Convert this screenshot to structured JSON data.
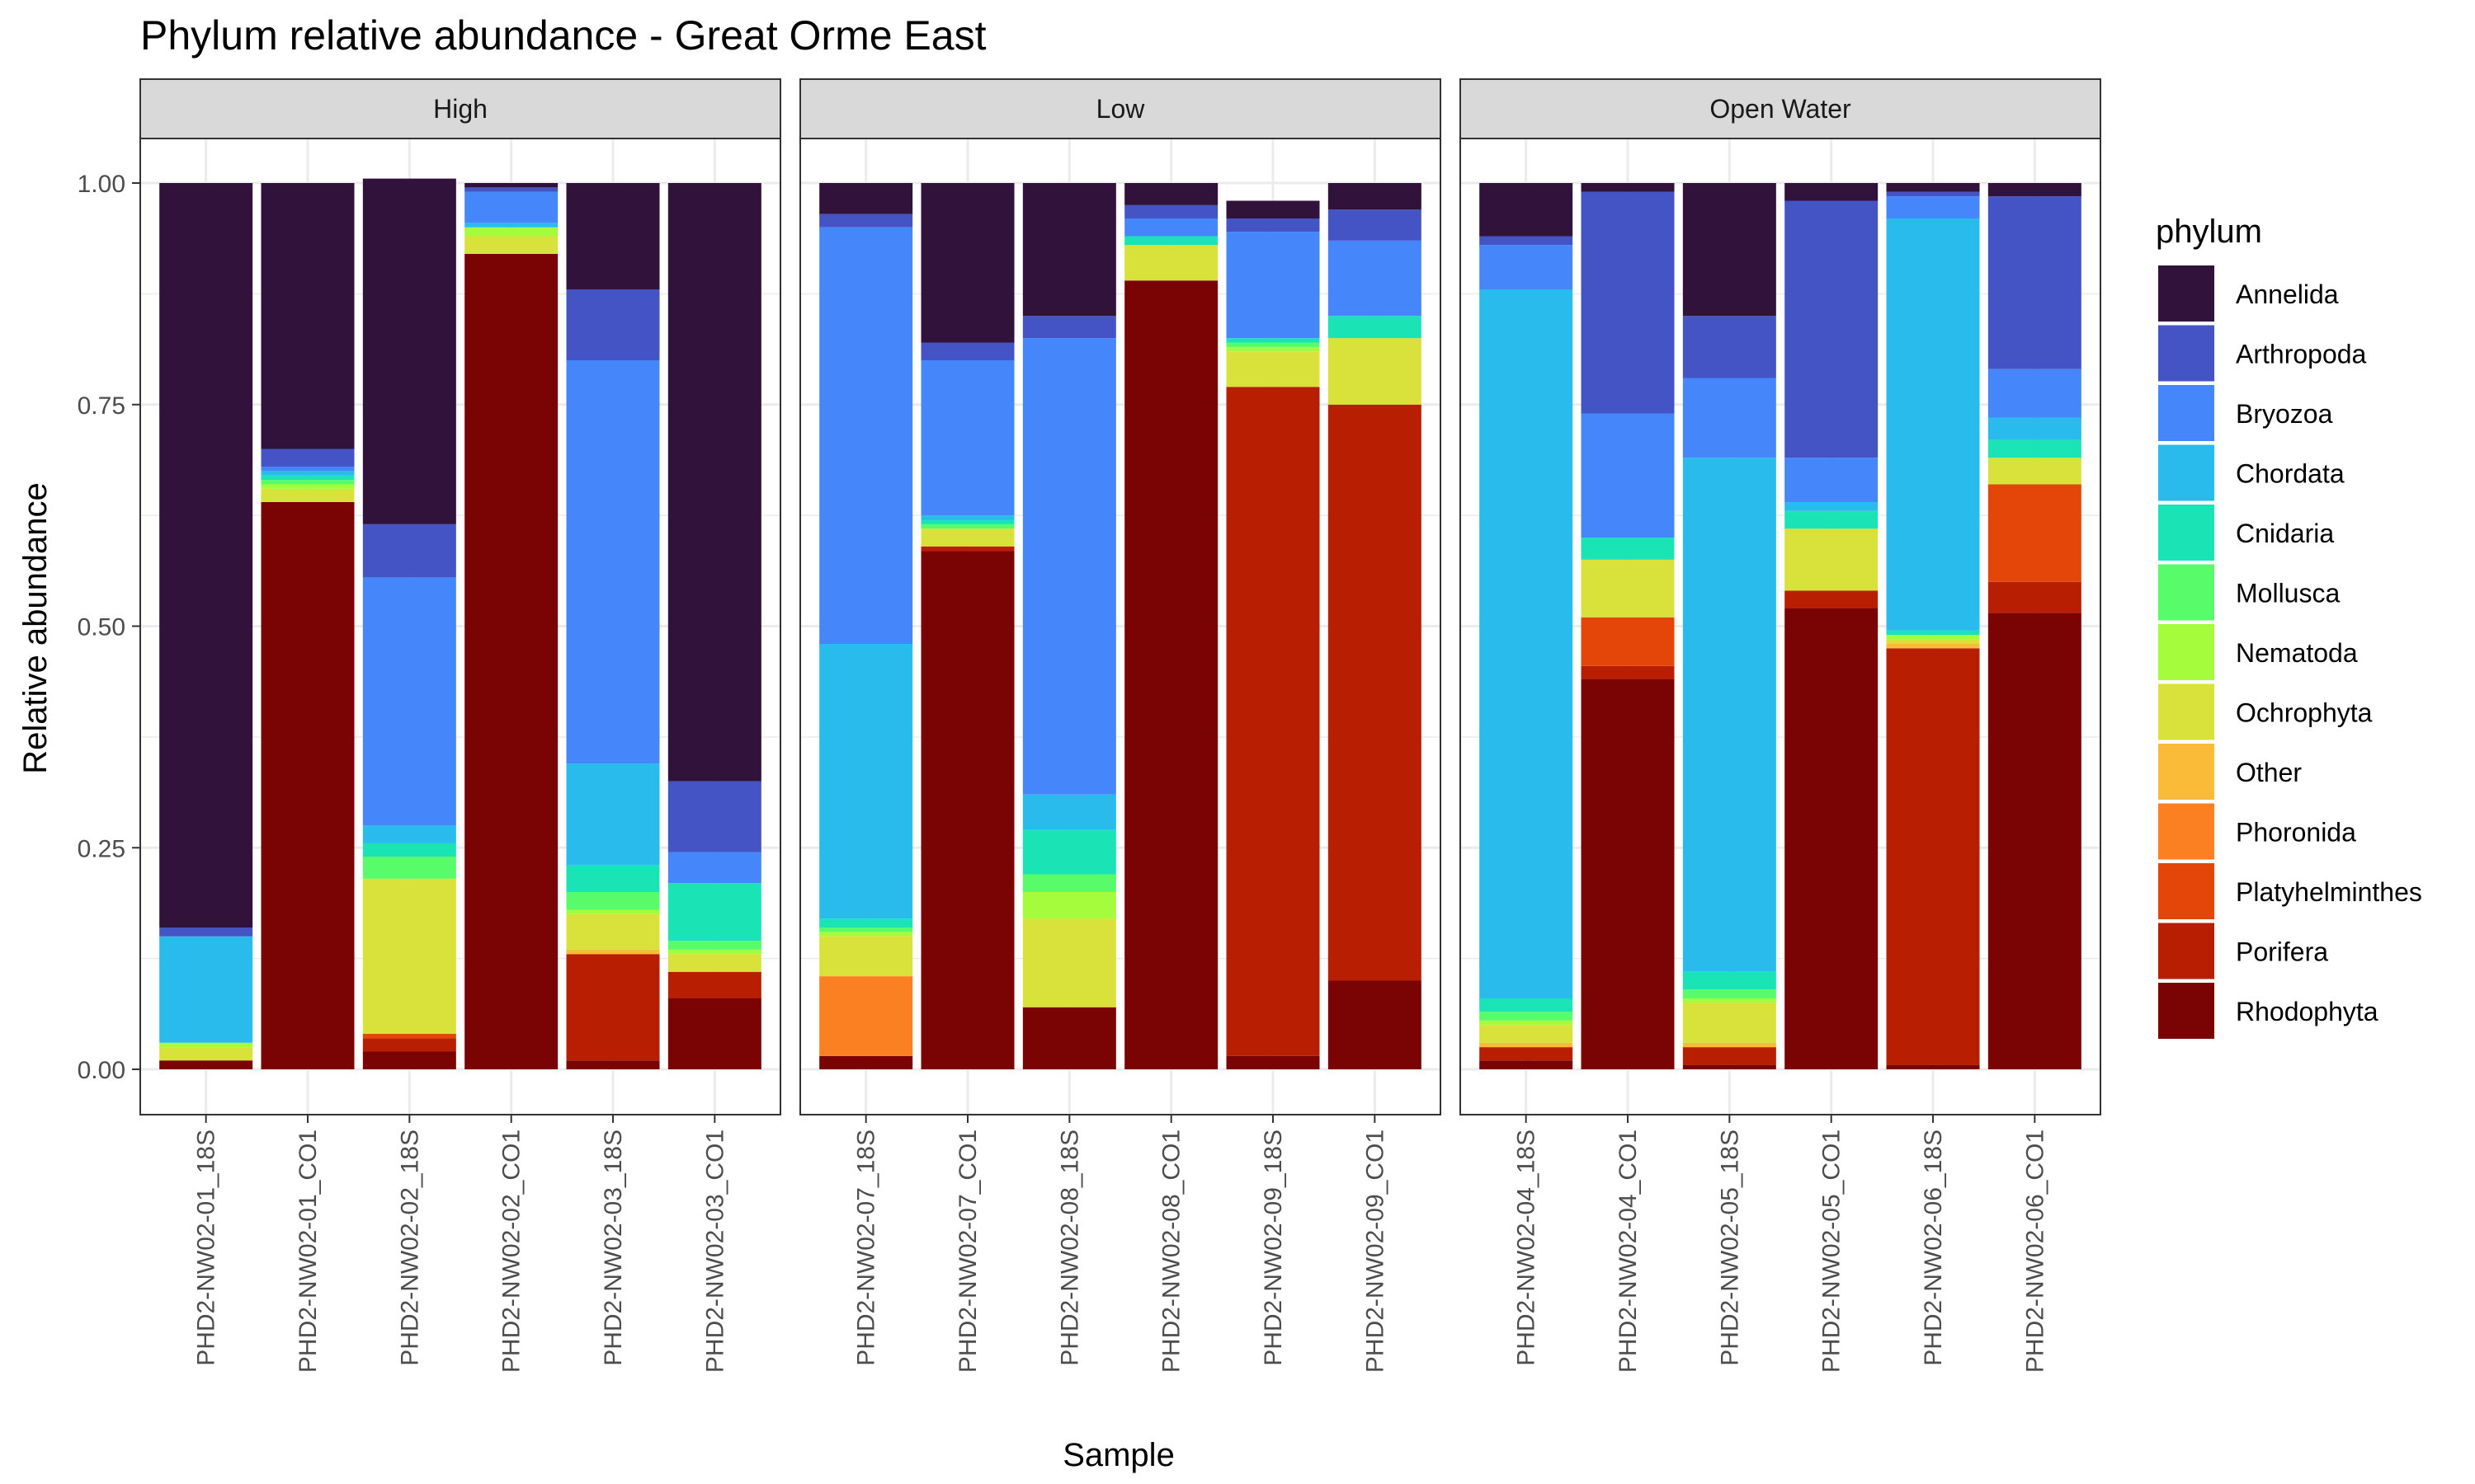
{
  "chart_data": {
    "type": "bar",
    "stacked": true,
    "title": "Phylum relative abundance - Great Orme East",
    "xlabel": "Sample",
    "ylabel": "Relative abundance",
    "ylim": [
      0,
      1
    ],
    "yticks": [
      "0.00",
      "0.25",
      "0.50",
      "0.75",
      "1.00"
    ],
    "legend_title": "phylum",
    "legend_position": "right",
    "phyla": [
      "Annelida",
      "Arthropoda",
      "Bryozoa",
      "Chordata",
      "Cnidaria",
      "Mollusca",
      "Nematoda",
      "Ochrophyta",
      "Other",
      "Phoronida",
      "Platyhelminthes",
      "Porifera",
      "Rhodophyta"
    ],
    "colors": {
      "Annelida": "#30123b",
      "Arthropoda": "#4454c4",
      "Bryozoa": "#4686fb",
      "Chordata": "#28bbec",
      "Cnidaria": "#1ae4b6",
      "Mollusca": "#58fb6a",
      "Nematoda": "#a4fc3c",
      "Ochrophyta": "#d8e23a",
      "Other": "#fabb39",
      "Phoronida": "#fb8022",
      "Platyhelminthes": "#e4460a",
      "Porifera": "#b81e02",
      "Rhodophyta": "#7a0403"
    },
    "stack_order_bottom_to_top": [
      "Rhodophyta",
      "Porifera",
      "Platyhelminthes",
      "Phoronida",
      "Other",
      "Ochrophyta",
      "Nematoda",
      "Mollusca",
      "Cnidaria",
      "Chordata",
      "Bryozoa",
      "Arthropoda",
      "Annelida"
    ],
    "facets": [
      {
        "name": "High",
        "samples": [
          {
            "name": "PHD2-NW02-01_18S",
            "values": {
              "Rhodophyta": 0.01,
              "Porifera": 0.0,
              "Platyhelminthes": 0.0,
              "Phoronida": 0.0,
              "Other": 0.0,
              "Ochrophyta": 0.015,
              "Nematoda": 0.005,
              "Mollusca": 0.0,
              "Cnidaria": 0.0,
              "Chordata": 0.12,
              "Bryozoa": 0.0,
              "Arthropoda": 0.01,
              "Annelida": 0.84
            }
          },
          {
            "name": "PHD2-NW02-01_CO1",
            "values": {
              "Rhodophyta": 0.64,
              "Porifera": 0.0,
              "Platyhelminthes": 0.0,
              "Phoronida": 0.0,
              "Other": 0.0,
              "Ochrophyta": 0.015,
              "Nematoda": 0.005,
              "Mollusca": 0.005,
              "Cnidaria": 0.005,
              "Chordata": 0.005,
              "Bryozoa": 0.005,
              "Arthropoda": 0.02,
              "Annelida": 0.3
            }
          },
          {
            "name": "PHD2-NW02-02_18S",
            "values": {
              "Rhodophyta": 0.02,
              "Porifera": 0.015,
              "Platyhelminthes": 0.005,
              "Phoronida": 0.0,
              "Other": 0.0,
              "Ochrophyta": 0.175,
              "Nematoda": 0.0,
              "Mollusca": 0.025,
              "Cnidaria": 0.015,
              "Chordata": 0.02,
              "Bryozoa": 0.28,
              "Arthropoda": 0.06,
              "Annelida": 0.39
            }
          },
          {
            "name": "PHD2-NW02-02_CO1",
            "values": {
              "Rhodophyta": 0.92,
              "Porifera": 0.0,
              "Platyhelminthes": 0.0,
              "Phoronida": 0.0,
              "Other": 0.0,
              "Ochrophyta": 0.02,
              "Nematoda": 0.01,
              "Mollusca": 0.0,
              "Cnidaria": 0.0,
              "Chordata": 0.005,
              "Bryozoa": 0.035,
              "Arthropoda": 0.005,
              "Annelida": 0.005
            }
          },
          {
            "name": "PHD2-NW02-03_18S",
            "values": {
              "Rhodophyta": 0.01,
              "Porifera": 0.12,
              "Platyhelminthes": 0.0,
              "Phoronida": 0.0,
              "Other": 0.005,
              "Ochrophyta": 0.04,
              "Nematoda": 0.005,
              "Mollusca": 0.02,
              "Cnidaria": 0.03,
              "Chordata": 0.115,
              "Bryozoa": 0.455,
              "Arthropoda": 0.08,
              "Annelida": 0.12
            }
          },
          {
            "name": "PHD2-NW02-03_CO1",
            "values": {
              "Rhodophyta": 0.08,
              "Porifera": 0.03,
              "Platyhelminthes": 0.0,
              "Phoronida": 0.0,
              "Other": 0.0,
              "Ochrophyta": 0.02,
              "Nematoda": 0.005,
              "Mollusca": 0.01,
              "Cnidaria": 0.065,
              "Chordata": 0.0,
              "Bryozoa": 0.035,
              "Arthropoda": 0.08,
              "Annelida": 0.675
            }
          }
        ]
      },
      {
        "name": "Low",
        "samples": [
          {
            "name": "PHD2-NW02-07_18S",
            "values": {
              "Rhodophyta": 0.015,
              "Porifera": 0.0,
              "Platyhelminthes": 0.0,
              "Phoronida": 0.09,
              "Other": 0.0,
              "Ochrophyta": 0.045,
              "Nematoda": 0.005,
              "Mollusca": 0.005,
              "Cnidaria": 0.01,
              "Chordata": 0.31,
              "Bryozoa": 0.47,
              "Arthropoda": 0.015,
              "Annelida": 0.035
            }
          },
          {
            "name": "PHD2-NW02-07_CO1",
            "values": {
              "Rhodophyta": 0.585,
              "Porifera": 0.005,
              "Platyhelminthes": 0.0,
              "Phoronida": 0.0,
              "Other": 0.0,
              "Ochrophyta": 0.02,
              "Nematoda": 0.0,
              "Mollusca": 0.005,
              "Cnidaria": 0.005,
              "Chordata": 0.005,
              "Bryozoa": 0.175,
              "Arthropoda": 0.02,
              "Annelida": 0.18
            }
          },
          {
            "name": "PHD2-NW02-08_18S",
            "values": {
              "Rhodophyta": 0.07,
              "Porifera": 0.0,
              "Platyhelminthes": 0.0,
              "Phoronida": 0.0,
              "Other": 0.0,
              "Ochrophyta": 0.1,
              "Nematoda": 0.03,
              "Mollusca": 0.02,
              "Cnidaria": 0.05,
              "Chordata": 0.04,
              "Bryozoa": 0.515,
              "Arthropoda": 0.025,
              "Annelida": 0.15
            }
          },
          {
            "name": "PHD2-NW02-08_CO1",
            "values": {
              "Rhodophyta": 0.89,
              "Porifera": 0.0,
              "Platyhelminthes": 0.0,
              "Phoronida": 0.0,
              "Other": 0.0,
              "Ochrophyta": 0.04,
              "Nematoda": 0.0,
              "Mollusca": 0.0,
              "Cnidaria": 0.01,
              "Chordata": 0.0,
              "Bryozoa": 0.02,
              "Arthropoda": 0.015,
              "Annelida": 0.025
            }
          },
          {
            "name": "PHD2-NW02-09_18S",
            "values": {
              "Rhodophyta": 0.015,
              "Porifera": 0.755,
              "Platyhelminthes": 0.0,
              "Phoronida": 0.0,
              "Other": 0.0,
              "Ochrophyta": 0.04,
              "Nematoda": 0.005,
              "Mollusca": 0.005,
              "Cnidaria": 0.005,
              "Chordata": 0.0,
              "Bryozoa": 0.12,
              "Arthropoda": 0.015,
              "Annelida": 0.02
            }
          },
          {
            "name": "PHD2-NW02-09_CO1",
            "values": {
              "Rhodophyta": 0.1,
              "Porifera": 0.65,
              "Platyhelminthes": 0.0,
              "Phoronida": 0.0,
              "Other": 0.0,
              "Ochrophyta": 0.075,
              "Nematoda": 0.0,
              "Mollusca": 0.0,
              "Cnidaria": 0.025,
              "Chordata": 0.0,
              "Bryozoa": 0.085,
              "Arthropoda": 0.035,
              "Annelida": 0.03
            }
          }
        ]
      },
      {
        "name": "Open Water",
        "samples": [
          {
            "name": "PHD2-NW02-04_18S",
            "values": {
              "Rhodophyta": 0.01,
              "Porifera": 0.015,
              "Platyhelminthes": 0.0,
              "Phoronida": 0.0,
              "Other": 0.005,
              "Ochrophyta": 0.02,
              "Nematoda": 0.005,
              "Mollusca": 0.01,
              "Cnidaria": 0.015,
              "Chordata": 0.8,
              "Bryozoa": 0.05,
              "Arthropoda": 0.01,
              "Annelida": 0.06
            }
          },
          {
            "name": "PHD2-NW02-04_CO1",
            "values": {
              "Rhodophyta": 0.44,
              "Porifera": 0.015,
              "Platyhelminthes": 0.055,
              "Phoronida": 0.0,
              "Other": 0.0,
              "Ochrophyta": 0.065,
              "Nematoda": 0.0,
              "Mollusca": 0.0,
              "Cnidaria": 0.025,
              "Chordata": 0.0,
              "Bryozoa": 0.14,
              "Arthropoda": 0.25,
              "Annelida": 0.01
            }
          },
          {
            "name": "PHD2-NW02-05_18S",
            "values": {
              "Rhodophyta": 0.005,
              "Porifera": 0.02,
              "Platyhelminthes": 0.0,
              "Phoronida": 0.0,
              "Other": 0.005,
              "Ochrophyta": 0.045,
              "Nematoda": 0.005,
              "Mollusca": 0.01,
              "Cnidaria": 0.02,
              "Chordata": 0.58,
              "Bryozoa": 0.09,
              "Arthropoda": 0.07,
              "Annelida": 0.15
            }
          },
          {
            "name": "PHD2-NW02-05_CO1",
            "values": {
              "Rhodophyta": 0.52,
              "Porifera": 0.02,
              "Platyhelminthes": 0.0,
              "Phoronida": 0.0,
              "Other": 0.0,
              "Ochrophyta": 0.07,
              "Nematoda": 0.0,
              "Mollusca": 0.0,
              "Cnidaria": 0.02,
              "Chordata": 0.01,
              "Bryozoa": 0.05,
              "Arthropoda": 0.29,
              "Annelida": 0.02
            }
          },
          {
            "name": "PHD2-NW02-06_18S",
            "values": {
              "Rhodophyta": 0.005,
              "Porifera": 0.47,
              "Platyhelminthes": 0.0,
              "Phoronida": 0.0,
              "Other": 0.005,
              "Ochrophyta": 0.005,
              "Nematoda": 0.005,
              "Mollusca": 0.0,
              "Cnidaria": 0.005,
              "Chordata": 0.465,
              "Bryozoa": 0.025,
              "Arthropoda": 0.005,
              "Annelida": 0.01
            }
          },
          {
            "name": "PHD2-NW02-06_CO1",
            "values": {
              "Rhodophyta": 0.515,
              "Porifera": 0.035,
              "Platyhelminthes": 0.11,
              "Phoronida": 0.0,
              "Other": 0.0,
              "Ochrophyta": 0.03,
              "Nematoda": 0.0,
              "Mollusca": 0.0,
              "Cnidaria": 0.02,
              "Chordata": 0.025,
              "Bryozoa": 0.055,
              "Arthropoda": 0.195,
              "Annelida": 0.015
            }
          }
        ]
      }
    ]
  }
}
